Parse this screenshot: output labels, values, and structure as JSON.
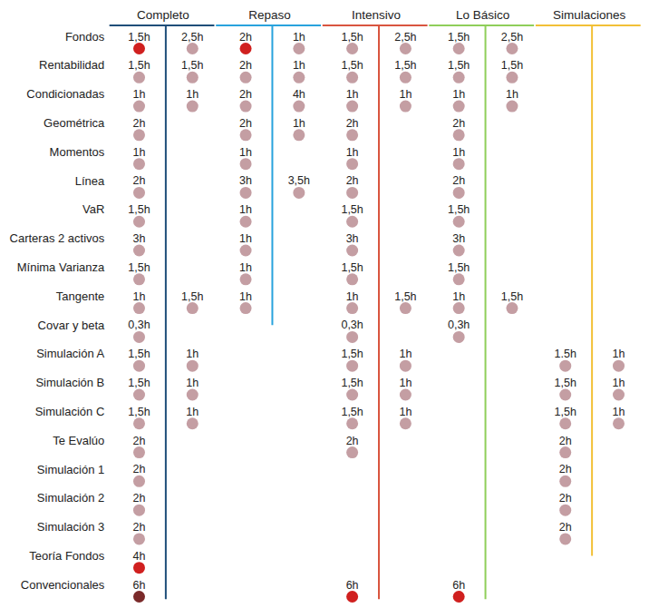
{
  "chart_data": {
    "type": "dot",
    "tick_labels": false,
    "data_labels": true,
    "categories": [
      "Fondos",
      "Rentabilidad",
      "Condicionadas",
      "Geométrica",
      "Momentos",
      "Línea",
      "VaR",
      "Carteras 2 activos",
      "Mínima Varianza",
      "Tangente",
      "Covar y beta",
      "Simulación A",
      "Simulación B",
      "Simulación C",
      "Te Evalúo",
      "Simulación 1",
      "Simulación 2",
      "Simulación 3",
      "Teoría Fondos",
      "Convencionales"
    ],
    "groups": [
      {
        "name": "Completo",
        "color": "#1f4e79",
        "columns": [
          {
            "values": [
              1.5,
              1.5,
              1,
              2,
              1,
              2,
              1.5,
              3,
              1.5,
              1,
              0.3,
              1.5,
              1.5,
              1.5,
              2,
              2,
              2,
              2,
              4,
              6
            ],
            "value_labels": [
              "1,5h",
              "1,5h",
              "1h",
              "2h",
              "1h",
              "2h",
              "1,5h",
              "3h",
              "1,5h",
              "1h",
              "0,3h",
              "1,5h",
              "1,5h",
              "1,5h",
              "2h",
              "2h",
              "2h",
              "2h",
              "4h",
              "6h"
            ],
            "colors": [
              "#d0201f",
              "#c49ea3",
              "#c49ea3",
              "#c49ea3",
              "#c49ea3",
              "#c49ea3",
              "#c49ea3",
              "#c49ea3",
              "#c49ea3",
              "#c49ea3",
              "#c49ea3",
              "#c49ea3",
              "#c49ea3",
              "#c49ea3",
              "#c49ea3",
              "#c49ea3",
              "#c49ea3",
              "#c49ea3",
              "#d0201f",
              "#7a2a2a"
            ]
          },
          {
            "values": [
              2.5,
              1.5,
              1,
              null,
              null,
              null,
              null,
              null,
              null,
              1.5,
              null,
              1,
              1,
              1,
              null,
              null,
              null,
              null,
              null,
              null
            ],
            "value_labels": [
              "2,5h",
              "1,5h",
              "1h",
              null,
              null,
              null,
              null,
              null,
              null,
              "1,5h",
              null,
              "1h",
              "1h",
              "1h",
              null,
              null,
              null,
              null,
              null,
              null
            ],
            "colors": [
              "#c49ea3",
              "#c49ea3",
              "#c49ea3",
              null,
              null,
              null,
              null,
              null,
              null,
              "#c49ea3",
              null,
              "#c49ea3",
              "#c49ea3",
              "#c49ea3",
              null,
              null,
              null,
              null,
              null,
              null
            ]
          }
        ]
      },
      {
        "name": "Repaso",
        "color": "#29a3dd",
        "columns": [
          {
            "values": [
              2,
              2,
              2,
              2,
              1,
              3,
              1,
              1,
              1,
              1,
              null,
              null,
              null,
              null,
              null,
              null,
              null,
              null,
              null,
              null
            ],
            "value_labels": [
              "2h",
              "2h",
              "2h",
              "2h",
              "1h",
              "3h",
              "1h",
              "1h",
              "1h",
              "1h",
              null,
              null,
              null,
              null,
              null,
              null,
              null,
              null,
              null,
              null
            ],
            "colors": [
              "#d0201f",
              "#c49ea3",
              "#c49ea3",
              "#c49ea3",
              "#c49ea3",
              "#c49ea3",
              "#c49ea3",
              "#c49ea3",
              "#c49ea3",
              "#c49ea3",
              null,
              null,
              null,
              null,
              null,
              null,
              null,
              null,
              null,
              null
            ]
          },
          {
            "values": [
              1,
              1,
              4,
              1,
              null,
              3.5,
              null,
              null,
              null,
              null,
              null,
              null,
              null,
              null,
              null,
              null,
              null,
              null,
              null,
              null
            ],
            "value_labels": [
              "1h",
              "1h",
              "4h",
              "1h",
              null,
              "3,5h",
              null,
              null,
              null,
              null,
              null,
              null,
              null,
              null,
              null,
              null,
              null,
              null,
              null,
              null
            ],
            "colors": [
              "#c49ea3",
              "#c49ea3",
              "#c49ea3",
              "#c49ea3",
              null,
              "#c49ea3",
              null,
              null,
              null,
              null,
              null,
              null,
              null,
              null,
              null,
              null,
              null,
              null,
              null,
              null
            ]
          }
        ]
      },
      {
        "name": "Intensivo",
        "color": "#d9553f",
        "columns": [
          {
            "values": [
              1.5,
              1.5,
              1,
              2,
              1,
              2,
              1.5,
              3,
              1.5,
              1,
              0.3,
              1.5,
              1.5,
              1.5,
              2,
              null,
              null,
              null,
              null,
              6
            ],
            "value_labels": [
              "1,5h",
              "1,5h",
              "1h",
              "2h",
              "1h",
              "2h",
              "1,5h",
              "3h",
              "1,5h",
              "1h",
              "0,3h",
              "1,5h",
              "1,5h",
              "1,5h",
              "2h",
              null,
              null,
              null,
              null,
              "6h"
            ],
            "colors": [
              "#c49ea3",
              "#c49ea3",
              "#c49ea3",
              "#c49ea3",
              "#c49ea3",
              "#c49ea3",
              "#c49ea3",
              "#c49ea3",
              "#c49ea3",
              "#c49ea3",
              "#c49ea3",
              "#c49ea3",
              "#c49ea3",
              "#c49ea3",
              "#c49ea3",
              null,
              null,
              null,
              null,
              "#d0201f"
            ]
          },
          {
            "values": [
              2.5,
              1.5,
              1,
              null,
              null,
              null,
              null,
              null,
              null,
              1.5,
              null,
              1,
              1,
              1,
              null,
              null,
              null,
              null,
              null,
              null
            ],
            "value_labels": [
              "2,5h",
              "1,5h",
              "1h",
              null,
              null,
              null,
              null,
              null,
              null,
              "1,5h",
              null,
              "1h",
              "1h",
              "1h",
              null,
              null,
              null,
              null,
              null,
              null
            ],
            "colors": [
              "#c49ea3",
              "#c49ea3",
              "#c49ea3",
              null,
              null,
              null,
              null,
              null,
              null,
              "#c49ea3",
              null,
              "#c49ea3",
              "#c49ea3",
              "#c49ea3",
              null,
              null,
              null,
              null,
              null,
              null
            ]
          }
        ]
      },
      {
        "name": "Lo Básico",
        "color": "#8fce5a",
        "columns": [
          {
            "values": [
              1.5,
              1.5,
              1,
              2,
              1,
              2,
              1.5,
              3,
              1.5,
              1,
              0.3,
              null,
              null,
              null,
              null,
              null,
              null,
              null,
              null,
              6
            ],
            "value_labels": [
              "1,5h",
              "1,5h",
              "1h",
              "2h",
              "1h",
              "2h",
              "1,5h",
              "3h",
              "1,5h",
              "1h",
              "0,3h",
              null,
              null,
              null,
              null,
              null,
              null,
              null,
              null,
              "6h"
            ],
            "colors": [
              "#c49ea3",
              "#c49ea3",
              "#c49ea3",
              "#c49ea3",
              "#c49ea3",
              "#c49ea3",
              "#c49ea3",
              "#c49ea3",
              "#c49ea3",
              "#c49ea3",
              "#c49ea3",
              null,
              null,
              null,
              null,
              null,
              null,
              null,
              null,
              "#d0201f"
            ]
          },
          {
            "values": [
              2.5,
              1.5,
              1,
              null,
              null,
              null,
              null,
              null,
              null,
              1.5,
              null,
              null,
              null,
              null,
              null,
              null,
              null,
              null,
              null,
              null
            ],
            "value_labels": [
              "2,5h",
              "1,5h",
              "1h",
              null,
              null,
              null,
              null,
              null,
              null,
              "1,5h",
              null,
              null,
              null,
              null,
              null,
              null,
              null,
              null,
              null,
              null
            ],
            "colors": [
              "#c49ea3",
              "#c49ea3",
              "#c49ea3",
              null,
              null,
              null,
              null,
              null,
              null,
              "#c49ea3",
              null,
              null,
              null,
              null,
              null,
              null,
              null,
              null,
              null,
              null
            ]
          }
        ]
      },
      {
        "name": "Simulaciones",
        "color": "#f2c037",
        "columns": [
          {
            "values": [
              null,
              null,
              null,
              null,
              null,
              null,
              null,
              null,
              null,
              null,
              null,
              1.5,
              1.5,
              1.5,
              2,
              2,
              2,
              2,
              null,
              null
            ],
            "value_labels": [
              null,
              null,
              null,
              null,
              null,
              null,
              null,
              null,
              null,
              null,
              null,
              "1.5h",
              "1,5h",
              "1,5h",
              "2h",
              "2h",
              "2h",
              "2h",
              null,
              null
            ],
            "colors": [
              null,
              null,
              null,
              null,
              null,
              null,
              null,
              null,
              null,
              null,
              null,
              "#c49ea3",
              "#c49ea3",
              "#c49ea3",
              "#c49ea3",
              "#c49ea3",
              "#c49ea3",
              "#c49ea3",
              null,
              null
            ]
          },
          {
            "values": [
              null,
              null,
              null,
              null,
              null,
              null,
              null,
              null,
              null,
              null,
              null,
              1,
              1,
              1,
              null,
              null,
              null,
              null,
              null,
              null
            ],
            "value_labels": [
              null,
              null,
              null,
              null,
              null,
              null,
              null,
              null,
              null,
              null,
              null,
              "1h",
              "1h",
              "1h",
              null,
              null,
              null,
              null,
              null,
              null
            ],
            "colors": [
              null,
              null,
              null,
              null,
              null,
              null,
              null,
              null,
              null,
              null,
              null,
              "#c49ea3",
              "#c49ea3",
              "#c49ea3",
              null,
              null,
              null,
              null,
              null,
              null
            ]
          }
        ]
      }
    ]
  }
}
